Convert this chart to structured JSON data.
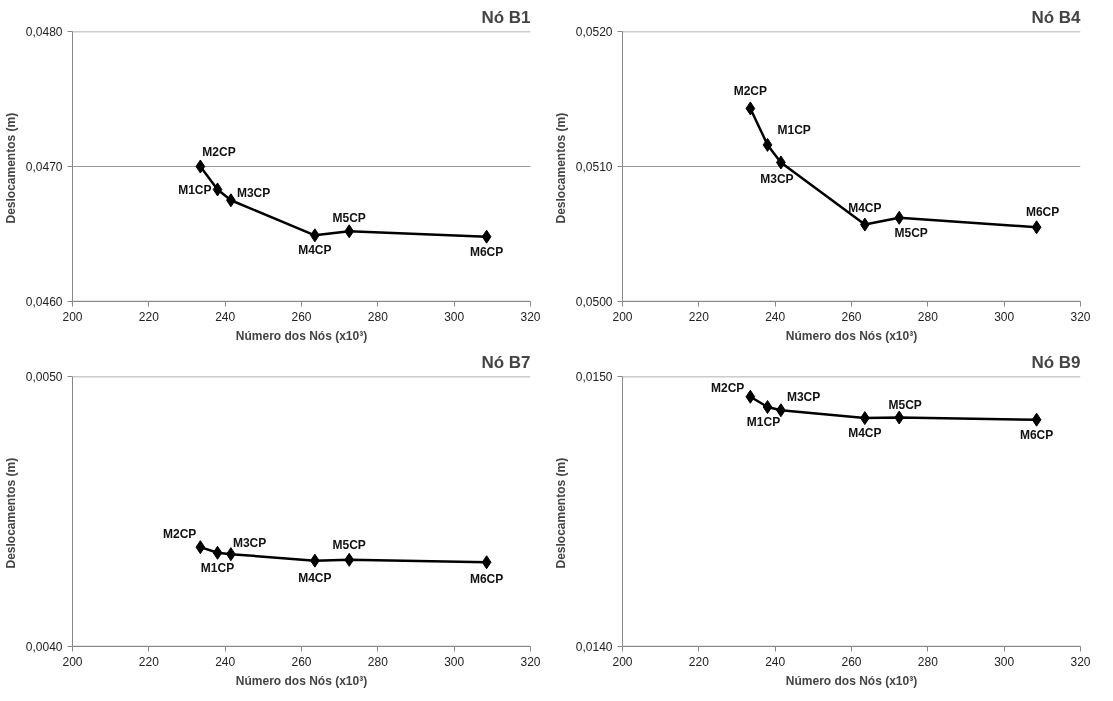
{
  "chart_data": [
    {
      "type": "line",
      "title": "Nó B1",
      "xlabel": "Número dos Nós (x10³)",
      "ylabel": "Deslocamentos  (m)",
      "x": [
        233.5,
        238,
        241.5,
        263.5,
        272.5,
        308.5
      ],
      "series": [
        {
          "color": "#000000",
          "values": [
            0.047,
            0.04683,
            0.04675,
            0.04649,
            0.04652,
            0.04648
          ]
        }
      ],
      "xlim": [
        200,
        320
      ],
      "xticks": [
        200,
        220,
        240,
        260,
        280,
        300,
        320
      ],
      "ylim": [
        0.046,
        0.048
      ],
      "yticks": [
        {
          "value": 0.046,
          "label": "0,0460"
        },
        {
          "value": 0.047,
          "label": "0,0470"
        },
        {
          "value": 0.048,
          "label": "0,0480"
        }
      ],
      "grid": "y",
      "marker": "diamond",
      "line_style": "solid",
      "annotations": [
        {
          "text": "M2CP",
          "x": 233.5,
          "y": 0.047
        },
        {
          "text": "M1CP",
          "x": 238,
          "y": 0.04683
        },
        {
          "text": "M3CP",
          "x": 241.5,
          "y": 0.04675
        },
        {
          "text": "M4CP",
          "x": 263.5,
          "y": 0.04649
        },
        {
          "text": "M5CP",
          "x": 272.5,
          "y": 0.04652
        },
        {
          "text": "M6CP",
          "x": 308.5,
          "y": 0.04648
        }
      ]
    },
    {
      "type": "line",
      "title": "Nó B4",
      "xlabel": "Número dos Nós (x10³)",
      "ylabel": "Deslocamentos  (m)",
      "x": [
        233.5,
        238,
        241.5,
        263.5,
        272.5,
        308.5
      ],
      "series": [
        {
          "color": "#000000",
          "values": [
            0.05143,
            0.05116,
            0.05103,
            0.05057,
            0.05062,
            0.05055
          ]
        }
      ],
      "xlim": [
        200,
        320
      ],
      "xticks": [
        200,
        220,
        240,
        260,
        280,
        300,
        320
      ],
      "ylim": [
        0.05,
        0.052
      ],
      "yticks": [
        {
          "value": 0.05,
          "label": "0,0500"
        },
        {
          "value": 0.051,
          "label": "0,0510"
        },
        {
          "value": 0.052,
          "label": "0,0520"
        }
      ],
      "grid": "y",
      "marker": "diamond",
      "line_style": "solid",
      "annotations": [
        {
          "text": "M2CP",
          "x": 233.5,
          "y": 0.05143
        },
        {
          "text": "M1CP",
          "x": 238,
          "y": 0.05116
        },
        {
          "text": "M3CP",
          "x": 241.5,
          "y": 0.05103
        },
        {
          "text": "M4CP",
          "x": 263.5,
          "y": 0.05057
        },
        {
          "text": "M5CP",
          "x": 272.5,
          "y": 0.05062
        },
        {
          "text": "M6CP",
          "x": 308.5,
          "y": 0.05055
        }
      ]
    },
    {
      "type": "line",
      "title": "Nó B7",
      "xlabel": "Número dos Nós (x10³)",
      "ylabel": "Deslocamentos  (m)",
      "x": [
        233.5,
        238,
        241.5,
        263.5,
        272.5,
        308.5
      ],
      "series": [
        {
          "color": "#000000",
          "values": [
            0.004368,
            0.004347,
            0.004342,
            0.004318,
            0.004321,
            0.004312
          ]
        }
      ],
      "xlim": [
        200,
        320
      ],
      "xticks": [
        200,
        220,
        240,
        260,
        280,
        300,
        320
      ],
      "ylim": [
        0.004,
        0.005
      ],
      "yticks": [
        {
          "value": 0.004,
          "label": "0,0040"
        },
        {
          "value": 0.005,
          "label": "0,0050"
        }
      ],
      "grid": "y",
      "marker": "diamond",
      "line_style": "solid",
      "annotations": [
        {
          "text": "M2CP",
          "x": 233.5,
          "y": 0.004368
        },
        {
          "text": "M1CP",
          "x": 238,
          "y": 0.004347
        },
        {
          "text": "M3CP",
          "x": 241.5,
          "y": 0.004342
        },
        {
          "text": "M4CP",
          "x": 263.5,
          "y": 0.004318
        },
        {
          "text": "M5CP",
          "x": 272.5,
          "y": 0.004321
        },
        {
          "text": "M6CP",
          "x": 308.5,
          "y": 0.004312
        }
      ]
    },
    {
      "type": "line",
      "title": "Nó B9",
      "xlabel": "Número dos Nós (x10³)",
      "ylabel": "Deslocamentos  (m)",
      "x": [
        233.5,
        238,
        241.5,
        263.5,
        272.5,
        308.5
      ],
      "series": [
        {
          "color": "#000000",
          "values": [
            0.014925,
            0.014887,
            0.014875,
            0.014846,
            0.014848,
            0.01484
          ]
        }
      ],
      "xlim": [
        200,
        320
      ],
      "xticks": [
        200,
        220,
        240,
        260,
        280,
        300,
        320
      ],
      "ylim": [
        0.014,
        0.015
      ],
      "yticks": [
        {
          "value": 0.014,
          "label": "0,0140"
        },
        {
          "value": 0.015,
          "label": "0,0150"
        }
      ],
      "grid": "y",
      "marker": "diamond",
      "line_style": "solid",
      "annotations": [
        {
          "text": "M2CP",
          "x": 233.5,
          "y": 0.014925
        },
        {
          "text": "M1CP",
          "x": 238,
          "y": 0.014887
        },
        {
          "text": "M3CP",
          "x": 241.5,
          "y": 0.014875
        },
        {
          "text": "M4CP",
          "x": 263.5,
          "y": 0.014846
        },
        {
          "text": "M5CP",
          "x": 272.5,
          "y": 0.014848
        },
        {
          "text": "M6CP",
          "x": 308.5,
          "y": 0.01484
        }
      ]
    }
  ]
}
